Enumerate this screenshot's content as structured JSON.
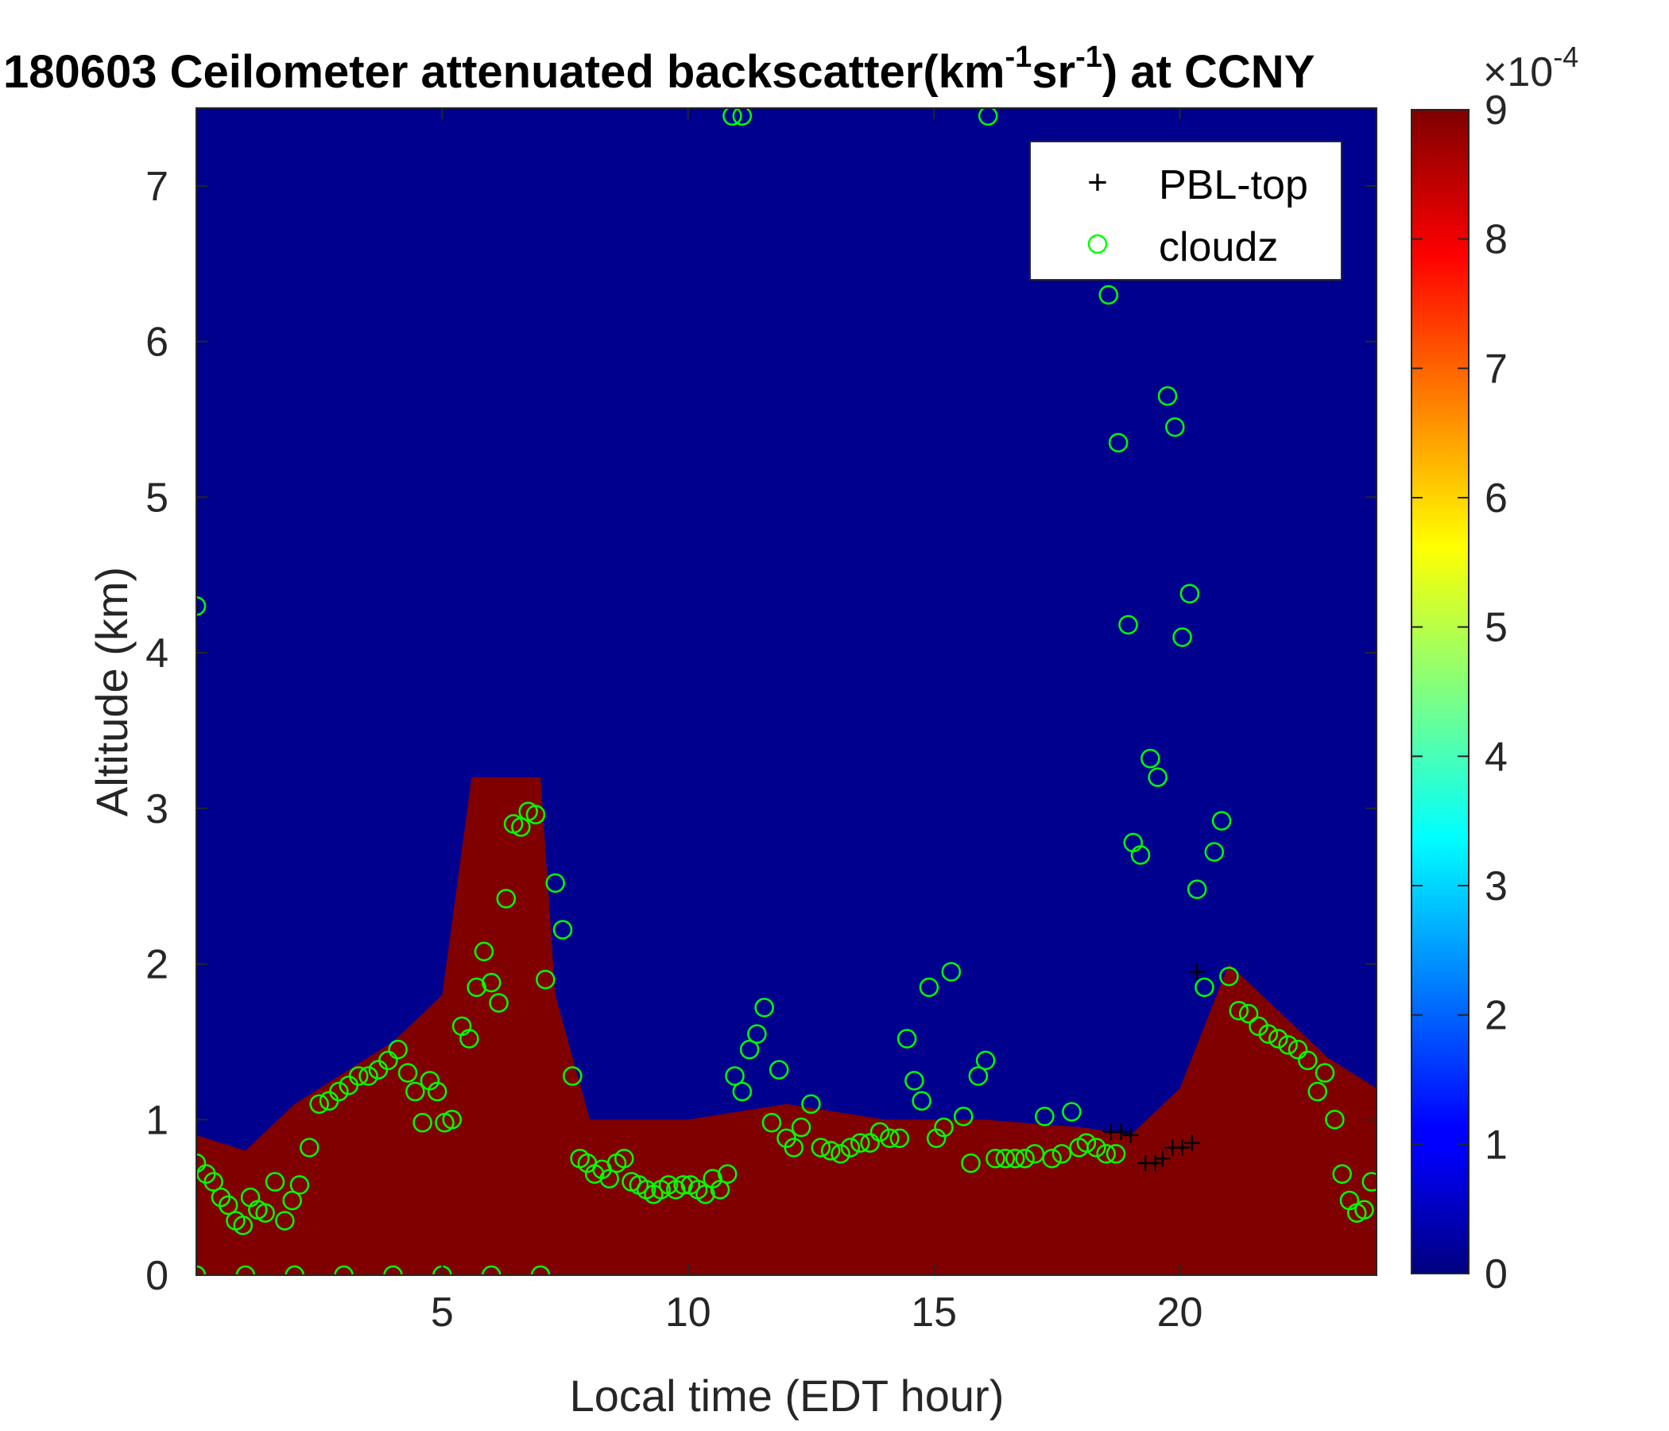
{
  "chart_data": {
    "type": "heatmap",
    "title": "180603 Ceilometer attenuated backscatter",
    "title_units": "(km",
    "title_units_exp1": "-1",
    "title_units_mid": "sr",
    "title_units_exp2": "-1",
    "title_suffix": ") at CCNY",
    "xlabel": "Local time (EDT hour)",
    "ylabel": "Altitude (km)",
    "xlim": [
      0,
      24
    ],
    "ylim": [
      0,
      7.5
    ],
    "x_ticks": [
      "5",
      "10",
      "15",
      "20"
    ],
    "y_ticks": [
      "0",
      "1",
      "2",
      "3",
      "4",
      "5",
      "6",
      "7"
    ],
    "colorbar": {
      "colormap": "jet",
      "range": [
        0,
        9
      ],
      "ticks": [
        "0",
        "1",
        "2",
        "3",
        "4",
        "5",
        "6",
        "7",
        "8",
        "9"
      ],
      "multiplier": "×10",
      "multiplier_exp": "-4"
    },
    "legend": {
      "position": "top-right",
      "entries": [
        {
          "label": "PBL-top",
          "marker": "+",
          "color": "#000000"
        },
        {
          "label": "cloudz",
          "marker": "o",
          "color": "#00ff00"
        }
      ]
    },
    "saturated_layer_top_km": [
      [
        0,
        0.9
      ],
      [
        1,
        0.8
      ],
      [
        2,
        1.1
      ],
      [
        3,
        1.3
      ],
      [
        4,
        1.5
      ],
      [
        5,
        1.8
      ],
      [
        5.6,
        3.2
      ],
      [
        7,
        3.2
      ],
      [
        7.3,
        1.8
      ],
      [
        8,
        1.0
      ],
      [
        10,
        1.0
      ],
      [
        12,
        1.1
      ],
      [
        14,
        1.0
      ],
      [
        16,
        1.0
      ],
      [
        18,
        0.95
      ],
      [
        19,
        0.9
      ],
      [
        20,
        1.2
      ],
      [
        21,
        2.0
      ],
      [
        22,
        1.7
      ],
      [
        23,
        1.4
      ],
      [
        24,
        1.2
      ]
    ],
    "series": [
      {
        "name": "cloudz",
        "points": [
          [
            0.0,
            0.72
          ],
          [
            0.2,
            0.65
          ],
          [
            0.35,
            0.6
          ],
          [
            0.5,
            0.5
          ],
          [
            0.65,
            0.45
          ],
          [
            0.8,
            0.35
          ],
          [
            0.95,
            0.32
          ],
          [
            1.1,
            0.5
          ],
          [
            1.25,
            0.42
          ],
          [
            1.4,
            0.4
          ],
          [
            1.6,
            0.6
          ],
          [
            1.8,
            0.35
          ],
          [
            1.95,
            0.48
          ],
          [
            2.1,
            0.58
          ],
          [
            2.3,
            0.82
          ],
          [
            2.5,
            1.1
          ],
          [
            2.7,
            1.12
          ],
          [
            2.9,
            1.18
          ],
          [
            3.1,
            1.22
          ],
          [
            3.3,
            1.28
          ],
          [
            3.5,
            1.28
          ],
          [
            3.7,
            1.32
          ],
          [
            3.9,
            1.38
          ],
          [
            4.1,
            1.45
          ],
          [
            4.3,
            1.3
          ],
          [
            4.45,
            1.18
          ],
          [
            4.6,
            0.98
          ],
          [
            4.75,
            1.25
          ],
          [
            4.9,
            1.18
          ],
          [
            5.05,
            0.98
          ],
          [
            5.2,
            1.0
          ],
          [
            5.4,
            1.6
          ],
          [
            5.55,
            1.52
          ],
          [
            5.7,
            1.85
          ],
          [
            5.85,
            2.08
          ],
          [
            6.0,
            1.88
          ],
          [
            6.15,
            1.75
          ],
          [
            6.3,
            2.42
          ],
          [
            6.45,
            2.9
          ],
          [
            6.6,
            2.88
          ],
          [
            6.75,
            2.98
          ],
          [
            6.9,
            2.96
          ],
          [
            7.1,
            1.9
          ],
          [
            7.3,
            2.52
          ],
          [
            7.45,
            2.22
          ],
          [
            7.65,
            1.28
          ],
          [
            7.8,
            0.75
          ],
          [
            7.95,
            0.72
          ],
          [
            8.1,
            0.65
          ],
          [
            8.25,
            0.68
          ],
          [
            8.4,
            0.62
          ],
          [
            8.55,
            0.72
          ],
          [
            8.7,
            0.75
          ],
          [
            8.85,
            0.6
          ],
          [
            9.0,
            0.58
          ],
          [
            9.15,
            0.55
          ],
          [
            9.3,
            0.52
          ],
          [
            9.45,
            0.55
          ],
          [
            9.6,
            0.58
          ],
          [
            9.75,
            0.55
          ],
          [
            9.9,
            0.58
          ],
          [
            10.05,
            0.58
          ],
          [
            10.2,
            0.55
          ],
          [
            10.35,
            0.52
          ],
          [
            10.5,
            0.62
          ],
          [
            10.65,
            0.55
          ],
          [
            10.8,
            0.65
          ],
          [
            10.95,
            1.28
          ],
          [
            11.1,
            1.18
          ],
          [
            11.25,
            1.45
          ],
          [
            11.4,
            1.55
          ],
          [
            11.55,
            1.72
          ],
          [
            11.7,
            0.98
          ],
          [
            11.85,
            1.32
          ],
          [
            12.0,
            0.88
          ],
          [
            12.15,
            0.82
          ],
          [
            12.3,
            0.95
          ],
          [
            12.5,
            1.1
          ],
          [
            12.7,
            0.82
          ],
          [
            12.9,
            0.8
          ],
          [
            13.1,
            0.78
          ],
          [
            13.3,
            0.82
          ],
          [
            13.5,
            0.85
          ],
          [
            13.7,
            0.85
          ],
          [
            13.9,
            0.92
          ],
          [
            14.1,
            0.88
          ],
          [
            14.3,
            0.88
          ],
          [
            14.45,
            1.52
          ],
          [
            14.6,
            1.25
          ],
          [
            14.75,
            1.12
          ],
          [
            14.9,
            1.85
          ],
          [
            15.05,
            0.88
          ],
          [
            15.2,
            0.95
          ],
          [
            15.35,
            1.95
          ],
          [
            15.6,
            1.02
          ],
          [
            15.75,
            0.72
          ],
          [
            15.9,
            1.28
          ],
          [
            16.05,
            1.38
          ],
          [
            16.25,
            0.75
          ],
          [
            16.45,
            0.75
          ],
          [
            16.65,
            0.75
          ],
          [
            16.85,
            0.75
          ],
          [
            17.05,
            0.78
          ],
          [
            17.25,
            1.02
          ],
          [
            17.4,
            0.75
          ],
          [
            17.6,
            0.78
          ],
          [
            17.8,
            1.05
          ],
          [
            17.95,
            0.82
          ],
          [
            18.1,
            0.85
          ],
          [
            18.3,
            0.82
          ],
          [
            18.5,
            0.78
          ],
          [
            18.7,
            0.78
          ],
          [
            18.55,
            6.3
          ],
          [
            18.75,
            5.35
          ],
          [
            18.95,
            4.18
          ],
          [
            19.05,
            2.78
          ],
          [
            19.2,
            2.7
          ],
          [
            19.4,
            3.32
          ],
          [
            19.55,
            3.2
          ],
          [
            19.75,
            5.65
          ],
          [
            19.9,
            5.45
          ],
          [
            20.05,
            4.1
          ],
          [
            20.2,
            4.38
          ],
          [
            20.35,
            2.48
          ],
          [
            20.5,
            1.85
          ],
          [
            20.7,
            2.72
          ],
          [
            20.85,
            2.92
          ],
          [
            21.0,
            1.92
          ],
          [
            21.2,
            1.7
          ],
          [
            21.4,
            1.68
          ],
          [
            21.6,
            1.6
          ],
          [
            21.8,
            1.55
          ],
          [
            22.0,
            1.52
          ],
          [
            22.2,
            1.48
          ],
          [
            22.4,
            1.45
          ],
          [
            22.6,
            1.38
          ],
          [
            22.8,
            1.18
          ],
          [
            22.95,
            1.3
          ],
          [
            23.15,
            1.0
          ],
          [
            23.3,
            0.65
          ],
          [
            23.45,
            0.48
          ],
          [
            23.6,
            0.4
          ],
          [
            23.75,
            0.42
          ],
          [
            23.9,
            0.6
          ],
          [
            0.0,
            4.3
          ],
          [
            10.9,
            7.45
          ],
          [
            11.1,
            7.45
          ],
          [
            16.1,
            7.45
          ],
          [
            0.0,
            0.0
          ],
          [
            1.0,
            0.0
          ],
          [
            2.0,
            0.0
          ],
          [
            3.0,
            0.0
          ],
          [
            4.0,
            0.0
          ],
          [
            5.0,
            0.0
          ],
          [
            6.0,
            0.0
          ],
          [
            7.0,
            0.0
          ]
        ]
      },
      {
        "name": "PBL-top",
        "points": [
          [
            18.6,
            0.92
          ],
          [
            18.8,
            0.92
          ],
          [
            19.0,
            0.9
          ],
          [
            19.3,
            0.72
          ],
          [
            19.5,
            0.72
          ],
          [
            19.65,
            0.75
          ],
          [
            19.85,
            0.82
          ],
          [
            20.05,
            0.82
          ],
          [
            20.25,
            0.85
          ],
          [
            20.35,
            1.95
          ]
        ]
      }
    ]
  }
}
